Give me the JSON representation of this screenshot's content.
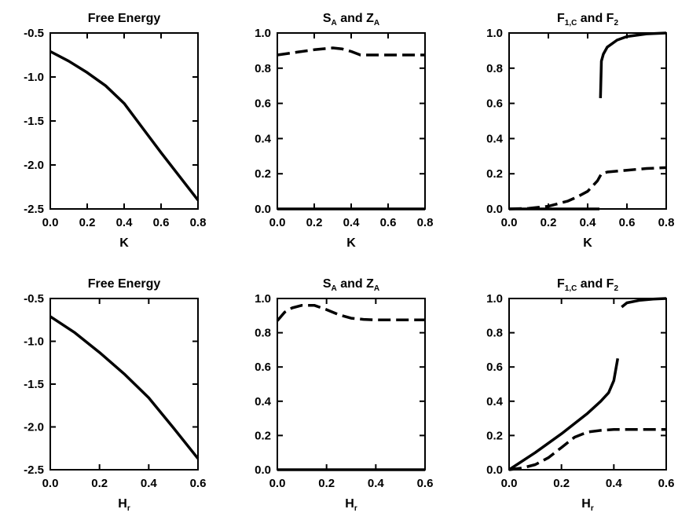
{
  "chart_data": [
    {
      "type": "line",
      "title_parts": [
        [
          "Free Energy",
          ""
        ]
      ],
      "xlabel_parts": [
        [
          "K",
          ""
        ]
      ],
      "xlim": [
        0,
        0.8
      ],
      "ylim": [
        -2.5,
        -0.5
      ],
      "xticks": [
        "0.0",
        "0.2",
        "0.4",
        "0.6",
        "0.8"
      ],
      "yticks": [
        "-2.5",
        "-2.0",
        "-1.5",
        "-1.0",
        "-0.5"
      ],
      "series": [
        {
          "style": "solid",
          "x": [
            0,
            0.1,
            0.2,
            0.3,
            0.4,
            0.5,
            0.6,
            0.7,
            0.8
          ],
          "y": [
            -0.71,
            -0.82,
            -0.95,
            -1.1,
            -1.3,
            -1.58,
            -1.86,
            -2.13,
            -2.4
          ]
        }
      ]
    },
    {
      "type": "line",
      "title_parts": [
        [
          "S",
          ""
        ],
        [
          "A",
          "sub"
        ],
        [
          " and Z",
          ""
        ],
        [
          "A",
          "sub"
        ]
      ],
      "xlabel_parts": [
        [
          "K",
          ""
        ]
      ],
      "xlim": [
        0,
        0.8
      ],
      "ylim": [
        0,
        1
      ],
      "xticks": [
        "0.0",
        "0.2",
        "0.4",
        "0.6",
        "0.8"
      ],
      "yticks": [
        "0.0",
        "0.2",
        "0.4",
        "0.6",
        "0.8",
        "1.0"
      ],
      "series": [
        {
          "style": "dashed",
          "x": [
            0,
            0.1,
            0.2,
            0.3,
            0.35,
            0.4,
            0.45,
            0.5,
            0.6,
            0.7,
            0.8
          ],
          "y": [
            0.875,
            0.89,
            0.905,
            0.915,
            0.91,
            0.895,
            0.875,
            0.875,
            0.875,
            0.875,
            0.875
          ]
        },
        {
          "style": "solid",
          "x": [
            0,
            0.8
          ],
          "y": [
            0,
            0
          ]
        }
      ]
    },
    {
      "type": "line",
      "title_parts": [
        [
          "F",
          ""
        ],
        [
          "1,C",
          "sub"
        ],
        [
          " and F",
          ""
        ],
        [
          "2",
          "sub"
        ]
      ],
      "xlabel_parts": [
        [
          "K",
          ""
        ]
      ],
      "xlim": [
        0,
        0.8
      ],
      "ylim": [
        0,
        1
      ],
      "xticks": [
        "0.0",
        "0.2",
        "0.4",
        "0.6",
        "0.8"
      ],
      "yticks": [
        "0.0",
        "0.2",
        "0.4",
        "0.6",
        "0.8",
        "1.0"
      ],
      "series": [
        {
          "style": "solid",
          "x": [
            0.465,
            0.47,
            0.48,
            0.5,
            0.55,
            0.6,
            0.7,
            0.8
          ],
          "y": [
            0.63,
            0.84,
            0.88,
            0.92,
            0.96,
            0.98,
            0.995,
            1.0
          ]
        },
        {
          "style": "dashed",
          "x": [
            0,
            0.1,
            0.2,
            0.3,
            0.35,
            0.4,
            0.45,
            0.47,
            0.5,
            0.6,
            0.7,
            0.8
          ],
          "y": [
            0,
            0.003,
            0.015,
            0.045,
            0.07,
            0.1,
            0.16,
            0.2,
            0.21,
            0.22,
            0.23,
            0.235
          ]
        },
        {
          "style": "solid",
          "x": [
            0,
            0.46
          ],
          "y": [
            0,
            0
          ]
        }
      ]
    },
    {
      "type": "line",
      "title_parts": [
        [
          "Free Energy",
          ""
        ]
      ],
      "xlabel_parts": [
        [
          "H",
          ""
        ],
        [
          "r",
          "sub"
        ]
      ],
      "xlim": [
        0,
        0.6
      ],
      "ylim": [
        -2.5,
        -0.5
      ],
      "xticks": [
        "0.0",
        "0.2",
        "0.4",
        "0.6"
      ],
      "yticks": [
        "-2.5",
        "-2.0",
        "-1.5",
        "-1.0",
        "-0.5"
      ],
      "series": [
        {
          "style": "solid",
          "x": [
            0,
            0.1,
            0.2,
            0.3,
            0.4,
            0.5,
            0.6
          ],
          "y": [
            -0.71,
            -0.9,
            -1.13,
            -1.38,
            -1.66,
            -2.01,
            -2.37
          ]
        }
      ]
    },
    {
      "type": "line",
      "title_parts": [
        [
          "S",
          ""
        ],
        [
          "A",
          "sub"
        ],
        [
          " and Z",
          ""
        ],
        [
          "A",
          "sub"
        ]
      ],
      "xlabel_parts": [
        [
          "H",
          ""
        ],
        [
          "r",
          "sub"
        ]
      ],
      "xlim": [
        0,
        0.6
      ],
      "ylim": [
        0,
        1
      ],
      "xticks": [
        "0.0",
        "0.2",
        "0.4",
        "0.6"
      ],
      "yticks": [
        "0.0",
        "0.2",
        "0.4",
        "0.6",
        "0.8",
        "1.0"
      ],
      "series": [
        {
          "style": "dashed",
          "x": [
            0,
            0.03,
            0.06,
            0.1,
            0.15,
            0.2,
            0.25,
            0.3,
            0.35,
            0.4,
            0.5,
            0.6
          ],
          "y": [
            0.87,
            0.92,
            0.945,
            0.96,
            0.96,
            0.935,
            0.905,
            0.885,
            0.878,
            0.875,
            0.875,
            0.875
          ]
        },
        {
          "style": "solid",
          "x": [
            0,
            0.6
          ],
          "y": [
            0,
            0
          ]
        }
      ]
    },
    {
      "type": "line",
      "title_parts": [
        [
          "F",
          ""
        ],
        [
          "1,C",
          "sub"
        ],
        [
          " and F",
          ""
        ],
        [
          "2",
          "sub"
        ]
      ],
      "xlabel_parts": [
        [
          "H",
          ""
        ],
        [
          "r",
          "sub"
        ]
      ],
      "xlim": [
        0,
        0.6
      ],
      "ylim": [
        0,
        1
      ],
      "xticks": [
        "0.0",
        "0.2",
        "0.4",
        "0.6"
      ],
      "yticks": [
        "0.0",
        "0.2",
        "0.4",
        "0.6",
        "0.8",
        "1.0"
      ],
      "series": [
        {
          "style": "solid",
          "x": [
            0,
            0.1,
            0.2,
            0.3,
            0.35,
            0.38,
            0.4,
            0.415
          ],
          "y": [
            0,
            0.1,
            0.21,
            0.33,
            0.4,
            0.45,
            0.52,
            0.65
          ]
        },
        {
          "style": "solid",
          "x": [
            0.43,
            0.45,
            0.5,
            0.55,
            0.6
          ],
          "y": [
            0.95,
            0.975,
            0.99,
            0.997,
            1.0
          ]
        },
        {
          "style": "dashed",
          "x": [
            0,
            0.05,
            0.1,
            0.15,
            0.2,
            0.25,
            0.3,
            0.35,
            0.4,
            0.5,
            0.6
          ],
          "y": [
            0,
            0.01,
            0.03,
            0.07,
            0.13,
            0.19,
            0.22,
            0.23,
            0.235,
            0.235,
            0.235
          ]
        }
      ]
    }
  ]
}
